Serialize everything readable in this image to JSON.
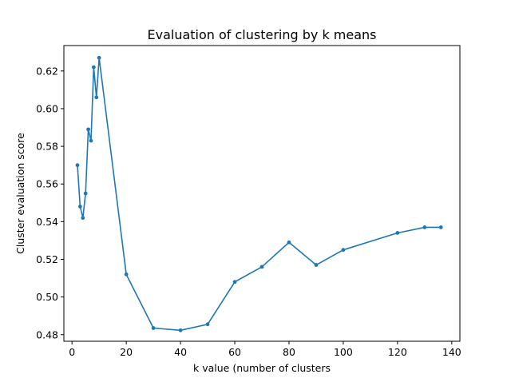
{
  "chart_data": {
    "type": "line",
    "title": "Evaluation of clustering by k means",
    "xlabel": "k value (number of clusters",
    "ylabel": "Cluster evaluation score",
    "xlim": [
      -3,
      143
    ],
    "ylim": [
      0.4765,
      0.6335
    ],
    "xticks": [
      0,
      20,
      40,
      60,
      80,
      100,
      120,
      140
    ],
    "yticks": [
      0.48,
      0.5,
      0.52,
      0.54,
      0.56,
      0.58,
      0.6,
      0.62
    ],
    "xtick_labels": [
      "0",
      "20",
      "40",
      "60",
      "80",
      "100",
      "120",
      "140"
    ],
    "ytick_labels": [
      "0.48",
      "0.50",
      "0.52",
      "0.54",
      "0.56",
      "0.58",
      "0.60",
      "0.62"
    ],
    "grid": false,
    "legend": "none",
    "series": [
      {
        "color": "#1f77b4",
        "marker": "dot",
        "x": [
          2,
          3,
          4,
          5,
          6,
          7,
          8,
          9,
          10,
          20,
          30,
          40,
          50,
          60,
          70,
          80,
          90,
          100,
          120,
          130,
          136
        ],
        "y": [
          0.57,
          0.548,
          0.542,
          0.555,
          0.589,
          0.583,
          0.622,
          0.606,
          0.627,
          0.512,
          0.4835,
          0.4823,
          0.4855,
          0.508,
          0.516,
          0.529,
          0.517,
          0.525,
          0.534,
          0.537,
          0.537
        ]
      }
    ]
  }
}
